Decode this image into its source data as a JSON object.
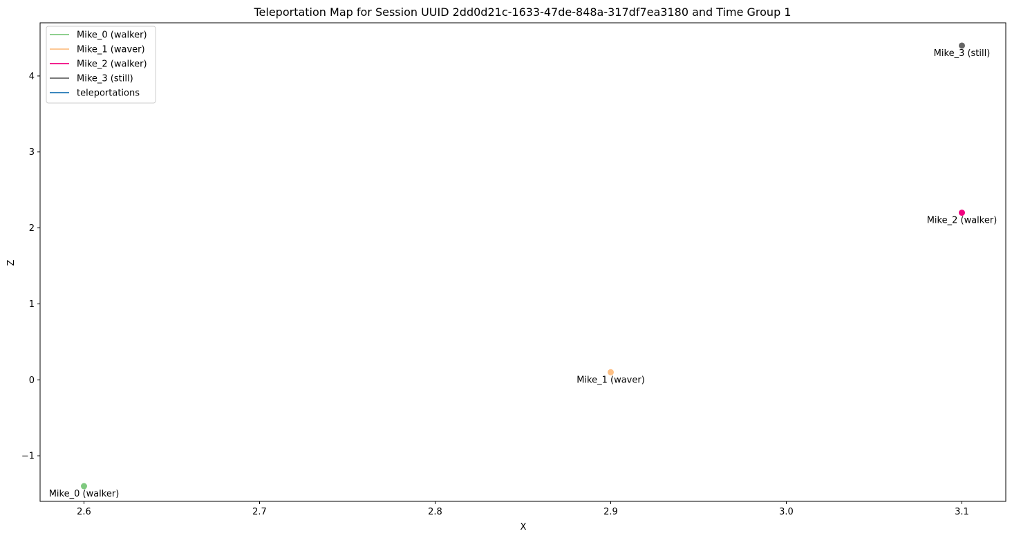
{
  "chart_data": {
    "type": "scatter",
    "title": "Teleportation Map for Session UUID 2dd0d21c-1633-47de-848a-317df7ea3180 and Time Group 1",
    "xlabel": "X",
    "ylabel": "Z",
    "xlim": [
      2.575,
      3.125
    ],
    "ylim": [
      -1.6,
      4.7
    ],
    "xticks": [
      {
        "value": 2.6,
        "label": "2.6"
      },
      {
        "value": 2.7,
        "label": "2.7"
      },
      {
        "value": 2.8,
        "label": "2.8"
      },
      {
        "value": 2.9,
        "label": "2.9"
      },
      {
        "value": 3.0,
        "label": "3.0"
      },
      {
        "value": 3.1,
        "label": "3.1"
      }
    ],
    "yticks": [
      {
        "value": -1,
        "label": "−1"
      },
      {
        "value": 0,
        "label": "0"
      },
      {
        "value": 1,
        "label": "1"
      },
      {
        "value": 2,
        "label": "2"
      },
      {
        "value": 3,
        "label": "3"
      },
      {
        "value": 4,
        "label": "4"
      }
    ],
    "grid": false,
    "legend_position": "top-left",
    "series": [
      {
        "name": "Mike_0 (walker)",
        "color": "#7fc97f",
        "points": [
          {
            "x": 2.6,
            "y": -1.4,
            "label": "Mike_0 (walker)"
          }
        ]
      },
      {
        "name": "Mike_1 (waver)",
        "color": "#fdc086",
        "points": [
          {
            "x": 2.9,
            "y": 0.1,
            "label": "Mike_1 (waver)"
          }
        ]
      },
      {
        "name": "Mike_2 (walker)",
        "color": "#f0027f",
        "points": [
          {
            "x": 3.1,
            "y": 2.2,
            "label": "Mike_2 (walker)"
          }
        ]
      },
      {
        "name": "Mike_3 (still)",
        "color": "#666666",
        "points": [
          {
            "x": 3.1,
            "y": 4.4,
            "label": "Mike_3 (still)"
          }
        ]
      },
      {
        "name": "teleportations",
        "color": "#1f77b4",
        "points": []
      }
    ]
  }
}
